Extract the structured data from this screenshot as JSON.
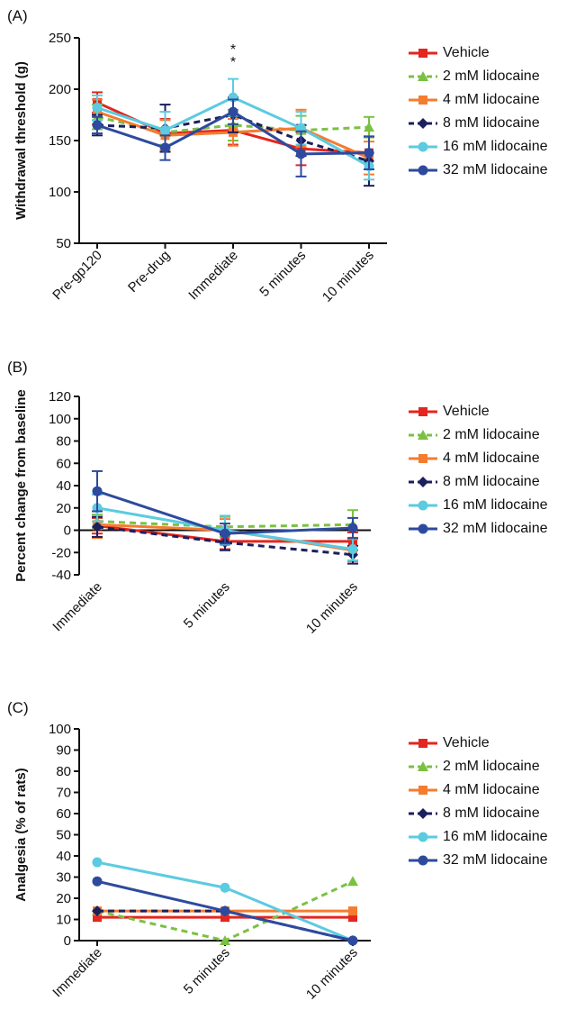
{
  "legend_labels": [
    "Vehicle",
    "2 mM lidocaine",
    "4 mM lidocaine",
    "8 mM lidocaine",
    "16 mM lidocaine",
    "32 mM lidocaine"
  ],
  "series_styles": [
    {
      "color": "#e3261f",
      "marker": "square",
      "dash": false
    },
    {
      "color": "#7ac143",
      "marker": "triangle",
      "dash": true
    },
    {
      "color": "#f47c2f",
      "marker": "square",
      "dash": false
    },
    {
      "color": "#1b1f5c",
      "marker": "diamond",
      "dash": true
    },
    {
      "color": "#5bcbe0",
      "marker": "circle",
      "dash": false
    },
    {
      "color": "#2e4a9e",
      "marker": "circle",
      "dash": false
    }
  ],
  "chart_data": [
    {
      "panel": "(A)",
      "type": "line",
      "ylabel": "Withdrawal threshold (g)",
      "xlabel": "",
      "categories": [
        "Pre-gp120",
        "Pre-drug",
        "Immediate",
        "5 minutes",
        "10 minutes"
      ],
      "ylim": [
        50,
        250
      ],
      "yticks": [
        50,
        100,
        150,
        200,
        250
      ],
      "zero_line": false,
      "annotation": {
        "text": "* *",
        "category": "Immediate"
      },
      "series": [
        {
          "name": "Vehicle",
          "values": [
            187,
            157,
            160,
            142,
            138
          ],
          "errors": [
            10,
            14,
            14,
            16,
            16
          ]
        },
        {
          "name": "2 mM lidocaine",
          "values": [
            173,
            158,
            165,
            160,
            163
          ],
          "errors": [
            12,
            12,
            15,
            14,
            10
          ]
        },
        {
          "name": "4 mM lidocaine",
          "values": [
            178,
            155,
            158,
            162,
            133
          ],
          "errors": [
            12,
            15,
            13,
            18,
            16
          ]
        },
        {
          "name": "8 mM lidocaine",
          "values": [
            165,
            162,
            175,
            150,
            130
          ],
          "errors": [
            10,
            23,
            17,
            15,
            24
          ]
        },
        {
          "name": "16 mM lidocaine",
          "values": [
            182,
            160,
            192,
            162,
            125
          ],
          "errors": [
            12,
            18,
            18,
            16,
            13
          ]
        },
        {
          "name": "32 mM lidocaine",
          "values": [
            165,
            143,
            178,
            137,
            138
          ],
          "errors": [
            8,
            12,
            12,
            22,
            16
          ]
        }
      ]
    },
    {
      "panel": "(B)",
      "type": "line",
      "ylabel": "Percent change from baseline",
      "xlabel": "",
      "categories": [
        "Immediate",
        "5 minutes",
        "10 minutes"
      ],
      "ylim": [
        -40,
        120
      ],
      "yticks": [
        -40,
        -20,
        0,
        20,
        40,
        60,
        80,
        100,
        120
      ],
      "zero_line": true,
      "series": [
        {
          "name": "Vehicle",
          "values": [
            4,
            -10,
            -10
          ],
          "errors": [
            7,
            7,
            8
          ]
        },
        {
          "name": "2 mM lidocaine",
          "values": [
            8,
            3,
            5
          ],
          "errors": [
            6,
            9,
            13
          ]
        },
        {
          "name": "4 mM lidocaine",
          "values": [
            5,
            0,
            -18
          ],
          "errors": [
            12,
            10,
            10
          ]
        },
        {
          "name": "8 mM lidocaine",
          "values": [
            3,
            -11,
            -22
          ],
          "errors": [
            9,
            7,
            8
          ]
        },
        {
          "name": "16 mM lidocaine",
          "values": [
            20,
            0,
            -17
          ],
          "errors": [
            12,
            13,
            10
          ]
        },
        {
          "name": "32 mM lidocaine",
          "values": [
            35,
            -3,
            2
          ],
          "errors": [
            18,
            9,
            9
          ]
        }
      ]
    },
    {
      "panel": "(C)",
      "type": "line",
      "ylabel": "Analgesia (% of rats)",
      "xlabel": "",
      "categories": [
        "Immediate",
        "5 minutes",
        "10 minutes"
      ],
      "ylim": [
        0,
        100
      ],
      "yticks": [
        0,
        10,
        20,
        30,
        40,
        50,
        60,
        70,
        80,
        90,
        100
      ],
      "zero_line": false,
      "series": [
        {
          "name": "Vehicle",
          "values": [
            11,
            11,
            11
          ]
        },
        {
          "name": "2 mM lidocaine",
          "values": [
            14,
            0,
            28
          ]
        },
        {
          "name": "4 mM lidocaine",
          "values": [
            14,
            14,
            14
          ]
        },
        {
          "name": "8 mM lidocaine",
          "values": [
            14,
            14,
            0
          ]
        },
        {
          "name": "16 mM lidocaine",
          "values": [
            37,
            25,
            0
          ]
        },
        {
          "name": "32 mM lidocaine",
          "values": [
            28,
            14,
            0
          ]
        }
      ]
    }
  ]
}
